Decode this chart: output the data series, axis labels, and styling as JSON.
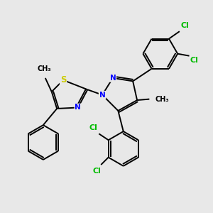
{
  "bg_color": "#e8e8e8",
  "bond_color": "#000000",
  "bond_lw": 1.4,
  "atom_colors": {
    "N": "#0000ff",
    "S": "#cccc00",
    "Cl": "#00bb00",
    "C": "#000000"
  },
  "font_size": 7.5
}
